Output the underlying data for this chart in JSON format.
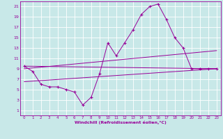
{
  "background_color": "#c8e8e8",
  "grid_color": "#ffffff",
  "line_color": "#990099",
  "xlabel": "Windchill (Refroidissement éolien,°C)",
  "xlim": [
    -0.5,
    23.5
  ],
  "ylim": [
    0,
    22
  ],
  "xticks": [
    0,
    1,
    2,
    3,
    4,
    5,
    6,
    7,
    8,
    9,
    10,
    11,
    12,
    13,
    14,
    15,
    16,
    17,
    18,
    19,
    20,
    21,
    22,
    23
  ],
  "yticks": [
    1,
    3,
    5,
    7,
    9,
    11,
    13,
    15,
    17,
    19,
    21
  ],
  "temp_curve": {
    "x": [
      0,
      1,
      2,
      3,
      4,
      5,
      6,
      7,
      8,
      9,
      10,
      11,
      12,
      13,
      14,
      15,
      16,
      17,
      18,
      19,
      20,
      21,
      22,
      23
    ],
    "y": [
      9.5,
      8.5,
      6.0,
      5.5,
      5.5,
      5.0,
      4.5,
      2.0,
      3.5,
      8.0,
      14.0,
      11.5,
      14.0,
      16.5,
      19.5,
      21.0,
      21.5,
      18.5,
      15.0,
      13.0,
      9.0,
      9.0,
      9.0,
      9.0
    ]
  },
  "line1": {
    "x": [
      0,
      23
    ],
    "y": [
      9.5,
      9.0
    ]
  },
  "line2": {
    "x": [
      0,
      23
    ],
    "y": [
      9.0,
      12.5
    ]
  },
  "line3": {
    "x": [
      0,
      23
    ],
    "y": [
      6.5,
      9.0
    ]
  }
}
